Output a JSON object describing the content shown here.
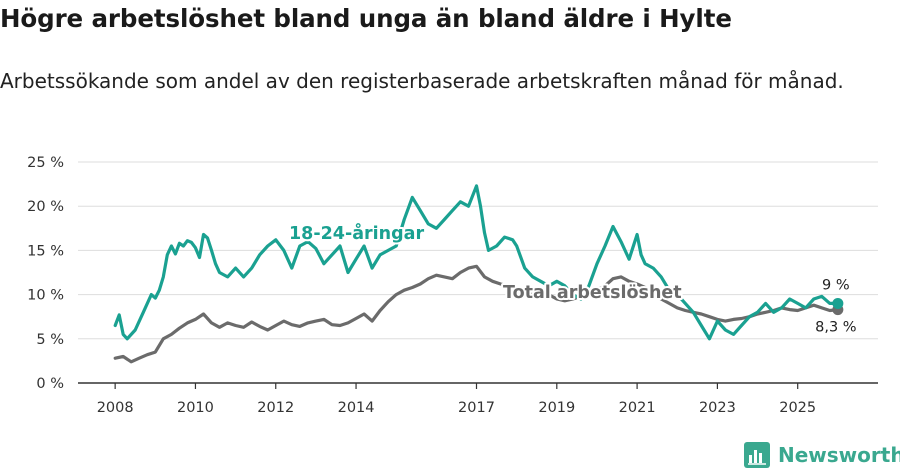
{
  "page": {
    "title": "Högre arbetslöshet bland unga än bland äldre i Hylte",
    "subtitle": "Arbetssökande som andel av den registerbaserade arbetskraften månad för månad.",
    "brand": "Newsworthy",
    "brand_icon": "bar-chart-icon"
  },
  "colors": {
    "youth": "#1aa191",
    "total": "#6b6b6b",
    "grid": "#dddddd",
    "axis": "#333333"
  },
  "chart_data": {
    "type": "line",
    "title": "Högre arbetslöshet bland unga än bland äldre i Hylte",
    "xlabel": "",
    "ylabel": "",
    "xlim": [
      2007.0,
      2027.0
    ],
    "ylim": [
      0,
      25
    ],
    "yticks": [
      0,
      5,
      10,
      15,
      20,
      25
    ],
    "ytick_labels": [
      "0 %",
      "5 %",
      "10 %",
      "15 %",
      "20 %",
      "25 %"
    ],
    "xticks": [
      2008,
      2010,
      2012,
      2014,
      2017,
      2019,
      2021,
      2023,
      2025
    ],
    "xtick_labels": [
      "2008",
      "2010",
      "2012",
      "2014",
      "2017",
      "2019",
      "2021",
      "2023",
      "2025"
    ],
    "grid": true,
    "series": [
      {
        "name": "18-24-åringar",
        "label": "18-24-åringar",
        "x": [
          2008.0,
          2008.1,
          2008.2,
          2008.3,
          2008.5,
          2008.7,
          2008.9,
          2009.0,
          2009.1,
          2009.2,
          2009.3,
          2009.4,
          2009.5,
          2009.6,
          2009.7,
          2009.8,
          2009.9,
          2010.0,
          2010.1,
          2010.2,
          2010.3,
          2010.4,
          2010.5,
          2010.6,
          2010.8,
          2011.0,
          2011.2,
          2011.4,
          2011.6,
          2011.8,
          2012.0,
          2012.2,
          2012.4,
          2012.6,
          2012.8,
          2013.0,
          2013.2,
          2013.4,
          2013.6,
          2013.8,
          2014.0,
          2014.2,
          2014.4,
          2014.6,
          2014.8,
          2015.0,
          2015.2,
          2015.4,
          2015.6,
          2015.8,
          2016.0,
          2016.2,
          2016.4,
          2016.6,
          2016.8,
          2017.0,
          2017.1,
          2017.2,
          2017.3,
          2017.5,
          2017.7,
          2017.9,
          2018.0,
          2018.2,
          2018.4,
          2018.6,
          2018.8,
          2019.0,
          2019.2,
          2019.4,
          2019.6,
          2019.8,
          2020.0,
          2020.2,
          2020.4,
          2020.6,
          2020.8,
          2021.0,
          2021.1,
          2021.2,
          2021.4,
          2021.6,
          2021.8,
          2022.0,
          2022.2,
          2022.4,
          2022.6,
          2022.8,
          2023.0,
          2023.2,
          2023.4,
          2023.6,
          2023.8,
          2024.0,
          2024.2,
          2024.4,
          2024.6,
          2024.8,
          2025.0,
          2025.2,
          2025.4,
          2025.6,
          2025.8,
          2026.0
        ],
        "y": [
          6.5,
          7.7,
          5.5,
          5.0,
          6.0,
          8.0,
          10.0,
          9.6,
          10.5,
          12.0,
          14.5,
          15.5,
          14.6,
          15.8,
          15.5,
          16.1,
          15.9,
          15.3,
          14.2,
          16.8,
          16.4,
          15.0,
          13.5,
          12.5,
          12.0,
          13.0,
          12.0,
          13.0,
          14.5,
          15.5,
          16.2,
          15.0,
          13.0,
          15.5,
          16.0,
          15.2,
          13.5,
          14.5,
          15.5,
          12.5,
          14.0,
          15.5,
          13.0,
          14.5,
          15.0,
          15.5,
          18.5,
          21.0,
          19.5,
          18.0,
          17.5,
          18.5,
          19.5,
          20.5,
          20.0,
          22.3,
          20.0,
          17.0,
          15.0,
          15.5,
          16.5,
          16.2,
          15.5,
          13.0,
          12.0,
          11.5,
          11.0,
          11.5,
          11.0,
          10.0,
          9.5,
          11.0,
          13.5,
          15.5,
          17.7,
          16.0,
          14.0,
          16.8,
          14.5,
          13.5,
          13.0,
          12.0,
          10.5,
          10.0,
          9.0,
          8.0,
          6.5,
          5.0,
          7.0,
          6.0,
          5.5,
          6.5,
          7.5,
          8.0,
          9.0,
          8.0,
          8.5,
          9.5,
          9.0,
          8.5,
          9.5,
          9.8,
          9.0,
          9.0
        ]
      },
      {
        "name": "Total arbetslöshet",
        "label": "Total arbetslöshet",
        "x": [
          2008.0,
          2008.2,
          2008.4,
          2008.6,
          2008.8,
          2009.0,
          2009.2,
          2009.4,
          2009.6,
          2009.8,
          2010.0,
          2010.2,
          2010.4,
          2010.6,
          2010.8,
          2011.0,
          2011.2,
          2011.4,
          2011.6,
          2011.8,
          2012.0,
          2012.2,
          2012.4,
          2012.6,
          2012.8,
          2013.0,
          2013.2,
          2013.4,
          2013.6,
          2013.8,
          2014.0,
          2014.2,
          2014.4,
          2014.6,
          2014.8,
          2015.0,
          2015.2,
          2015.4,
          2015.6,
          2015.8,
          2016.0,
          2016.2,
          2016.4,
          2016.6,
          2016.8,
          2017.0,
          2017.2,
          2017.4,
          2017.6,
          2017.8,
          2018.0,
          2018.2,
          2018.4,
          2018.6,
          2018.8,
          2019.0,
          2019.2,
          2019.4,
          2019.6,
          2019.8,
          2020.0,
          2020.2,
          2020.4,
          2020.6,
          2020.8,
          2021.0,
          2021.2,
          2021.4,
          2021.6,
          2021.8,
          2022.0,
          2022.2,
          2022.4,
          2022.6,
          2022.8,
          2023.0,
          2023.2,
          2023.4,
          2023.6,
          2023.8,
          2024.0,
          2024.2,
          2024.4,
          2024.6,
          2024.8,
          2025.0,
          2025.2,
          2025.4,
          2025.6,
          2025.8,
          2026.0
        ],
        "y": [
          2.8,
          3.0,
          2.4,
          2.8,
          3.2,
          3.5,
          5.0,
          5.5,
          6.2,
          6.8,
          7.2,
          7.8,
          6.8,
          6.3,
          6.8,
          6.5,
          6.3,
          6.9,
          6.4,
          6.0,
          6.5,
          7.0,
          6.6,
          6.4,
          6.8,
          7.0,
          7.2,
          6.6,
          6.5,
          6.8,
          7.3,
          7.8,
          7.0,
          8.2,
          9.2,
          10.0,
          10.5,
          10.8,
          11.2,
          11.8,
          12.2,
          12.0,
          11.8,
          12.5,
          13.0,
          13.2,
          12.0,
          11.5,
          11.2,
          11.0,
          10.5,
          10.2,
          10.0,
          9.8,
          10.0,
          9.5,
          9.3,
          9.5,
          9.8,
          10.0,
          10.5,
          11.0,
          11.8,
          12.0,
          11.5,
          11.2,
          10.8,
          10.0,
          9.5,
          9.0,
          8.5,
          8.2,
          8.0,
          7.8,
          7.5,
          7.2,
          7.0,
          7.2,
          7.3,
          7.5,
          7.8,
          8.0,
          8.2,
          8.5,
          8.3,
          8.2,
          8.5,
          8.8,
          8.5,
          8.2,
          8.3
        ]
      }
    ],
    "end_labels": [
      {
        "series": "18-24-åringar",
        "text": "9 %"
      },
      {
        "series": "Total arbetslöshet",
        "text": "8,3 %"
      }
    ]
  }
}
